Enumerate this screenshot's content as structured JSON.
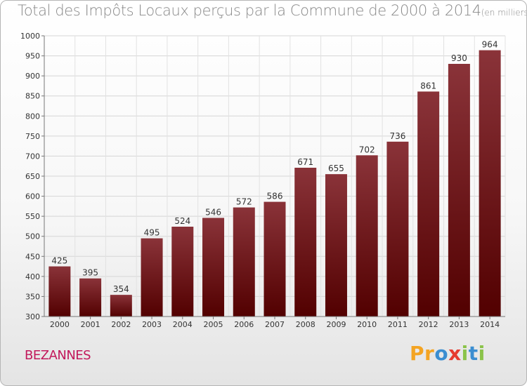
{
  "chart_data": {
    "type": "bar",
    "title": "Total des Impôts Locaux perçus par la Commune de 2000 à 2014",
    "unit_label": "(en milliers d'€)",
    "categories": [
      "2000",
      "2001",
      "2002",
      "2003",
      "2004",
      "2005",
      "2006",
      "2007",
      "2008",
      "2009",
      "2010",
      "2011",
      "2012",
      "2013",
      "2014"
    ],
    "values": [
      425,
      395,
      354,
      495,
      524,
      546,
      572,
      586,
      671,
      655,
      702,
      736,
      861,
      930,
      964
    ],
    "ylim": [
      300,
      1000
    ],
    "yticks": [
      300,
      350,
      400,
      450,
      500,
      550,
      600,
      650,
      700,
      750,
      800,
      850,
      900,
      950,
      1000
    ],
    "xlabel": "",
    "ylabel": "",
    "grid": true,
    "bar_color_top": "#8a3339",
    "bar_color_bottom": "#520000"
  },
  "commune": "BEZANNES",
  "logo": {
    "letters": [
      "P",
      "r",
      "o",
      "x",
      "i",
      "t",
      "i"
    ],
    "colors": [
      "#f4a422",
      "#f4a422",
      "#3b8ed1",
      "#e63a2e",
      "#8bc34a",
      "#3b8ed1",
      "#8bc34a"
    ]
  }
}
